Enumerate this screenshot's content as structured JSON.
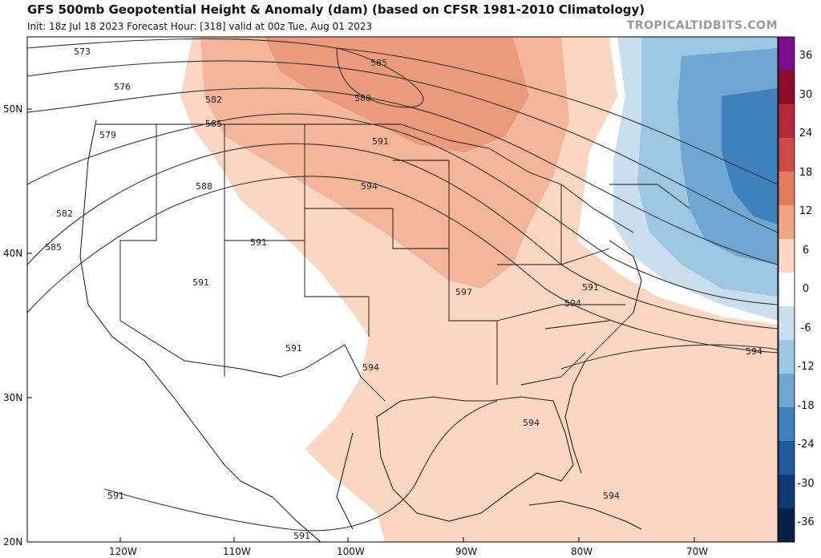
{
  "header": {
    "title": "GFS 500mb Geopotential Height & Anomaly (dam) (based on CFSR 1981-2010 Climatology)",
    "run_info": "Init: 18z Jul 18 2023   Forecast Hour: [318]   valid at 00z Tue, Aug 01 2023",
    "credit": "TROPICALTIDBITS.COM"
  },
  "colorbar": {
    "labels": [
      "36",
      "30",
      "24",
      "18",
      "12",
      "6",
      "0",
      "-6",
      "-12",
      "-18",
      "-24",
      "-30",
      "-36"
    ],
    "colors": [
      "#7e0c8c",
      "#8a0f2a",
      "#b7283a",
      "#cf4a45",
      "#e27a5d",
      "#f0a684",
      "#fbd6c2",
      "#ffffff",
      "#c9dfee",
      "#9dc6e2",
      "#6fa7d2",
      "#3d82bd",
      "#1f5a9a",
      "#0e3a75",
      "#06204a"
    ]
  },
  "axes": {
    "lat_labels": [
      "50N",
      "40N",
      "30N",
      "20N"
    ],
    "lon_labels": [
      "120W",
      "110W",
      "100W",
      "90W",
      "80W",
      "70W"
    ]
  },
  "contour_labels": [
    "573",
    "576",
    "579",
    "582",
    "585",
    "582",
    "585",
    "588",
    "591",
    "594",
    "585",
    "588",
    "591",
    "591",
    "591",
    "594",
    "597",
    "591",
    "594",
    "594",
    "594",
    "594",
    "591",
    "591"
  ]
}
